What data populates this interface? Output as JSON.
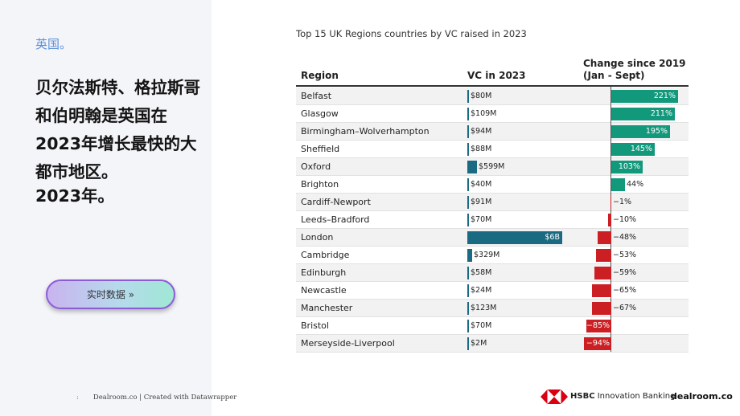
{
  "left_panel": {
    "kicker": "英国。",
    "headline": "贝尔法斯特、格拉斯哥和伯明翰是英国在2023年增长最快的大都市地区。",
    "subline": "2023年。",
    "cta_label": "实时数据 »",
    "credit_dot": ":",
    "credit": "Dealroom.co | Created with Datawrapper"
  },
  "footer": {
    "hsbc_bold": "HSBC",
    "hsbc_rest": " Innovation Banking",
    "dealroom": "dealroom.co"
  },
  "chart_data": {
    "type": "table",
    "title": "Top 15 UK Regions countries by VC raised in 2023",
    "columns": {
      "region": "Region",
      "vc": "VC in 2023",
      "change_line1": "Change since 2019",
      "change_line2": "(Jan - Sept)"
    },
    "colors": {
      "vc_bar": "#1a6a82",
      "positive": "#12997c",
      "negative": "#cc1f24"
    },
    "rows": [
      {
        "region": "Belfast",
        "vc_label": "$80M",
        "vc_musd": 80,
        "change_label": "221%",
        "change_pct": 221
      },
      {
        "region": "Glasgow",
        "vc_label": "$109M",
        "vc_musd": 109,
        "change_label": "211%",
        "change_pct": 211
      },
      {
        "region": "Birmingham–Wolverhampton",
        "vc_label": "$94M",
        "vc_musd": 94,
        "change_label": "195%",
        "change_pct": 195
      },
      {
        "region": "Sheffield",
        "vc_label": "$88M",
        "vc_musd": 88,
        "change_label": "145%",
        "change_pct": 145
      },
      {
        "region": "Oxford",
        "vc_label": "$599M",
        "vc_musd": 599,
        "change_label": "103%",
        "change_pct": 103
      },
      {
        "region": "Brighton",
        "vc_label": "$40M",
        "vc_musd": 40,
        "change_label": "44%",
        "change_pct": 44
      },
      {
        "region": "Cardiff-Newport",
        "vc_label": "$91M",
        "vc_musd": 91,
        "change_label": "−1%",
        "change_pct": -1
      },
      {
        "region": "Leeds–Bradford",
        "vc_label": "$70M",
        "vc_musd": 70,
        "change_label": "−10%",
        "change_pct": -10
      },
      {
        "region": "London",
        "vc_label": "$6B",
        "vc_musd": 6000,
        "change_label": "−48%",
        "change_pct": -48
      },
      {
        "region": "Cambridge",
        "vc_label": "$329M",
        "vc_musd": 329,
        "change_label": "−53%",
        "change_pct": -53
      },
      {
        "region": "Edinburgh",
        "vc_label": "$58M",
        "vc_musd": 58,
        "change_label": "−59%",
        "change_pct": -59
      },
      {
        "region": "Newcastle",
        "vc_label": "$24M",
        "vc_musd": 24,
        "change_label": "−65%",
        "change_pct": -65
      },
      {
        "region": "Manchester",
        "vc_label": "$123M",
        "vc_musd": 123,
        "change_label": "−67%",
        "change_pct": -67
      },
      {
        "region": "Bristol",
        "vc_label": "$70M",
        "vc_musd": 70,
        "change_label": "−85%",
        "change_pct": -85
      },
      {
        "region": "Merseyside-Liverpool",
        "vc_label": "$2M",
        "vc_musd": 2,
        "change_label": "−94%",
        "change_pct": -94
      }
    ]
  }
}
